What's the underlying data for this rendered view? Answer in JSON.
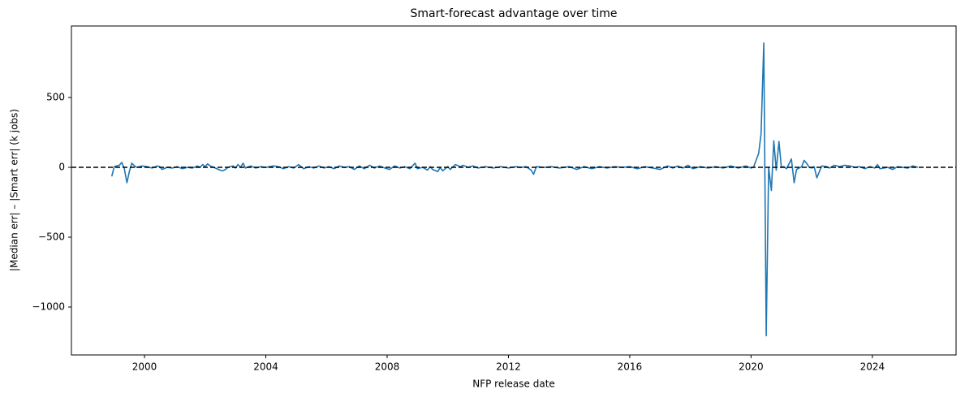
{
  "chart_data": {
    "type": "line",
    "title": "Smart-forecast advantage over time",
    "x_label": "NFP release date",
    "y_label": "|Median err| – |Smart err|  (k jobs)",
    "x": [
      1998.92,
      1999.0,
      1999.08,
      1999.17,
      1999.25,
      1999.33,
      1999.42,
      1999.5,
      1999.58,
      1999.67,
      1999.75,
      1999.92,
      2000.08,
      2000.25,
      2000.42,
      2000.5,
      2000.58,
      2000.75,
      2000.92,
      2001.08,
      2001.25,
      2001.42,
      2001.58,
      2001.75,
      2001.83,
      2001.92,
      2002.0,
      2002.08,
      2002.17,
      2002.33,
      2002.5,
      2002.58,
      2002.67,
      2002.75,
      2002.92,
      2003.0,
      2003.08,
      2003.17,
      2003.25,
      2003.33,
      2003.5,
      2003.67,
      2003.83,
      2004.0,
      2004.25,
      2004.42,
      2004.58,
      2004.75,
      2004.92,
      2005.08,
      2005.25,
      2005.42,
      2005.58,
      2005.75,
      2005.92,
      2006.08,
      2006.25,
      2006.42,
      2006.58,
      2006.75,
      2006.92,
      2007.08,
      2007.25,
      2007.42,
      2007.58,
      2007.75,
      2007.92,
      2008.08,
      2008.25,
      2008.42,
      2008.58,
      2008.75,
      2008.92,
      2009.0,
      2009.17,
      2009.33,
      2009.42,
      2009.5,
      2009.67,
      2009.75,
      2009.83,
      2010.0,
      2010.08,
      2010.25,
      2010.42,
      2010.5,
      2010.67,
      2010.83,
      2011.0,
      2011.25,
      2011.5,
      2011.75,
      2012.0,
      2012.25,
      2012.42,
      2012.58,
      2012.75,
      2012.83,
      2012.92,
      2013.17,
      2013.42,
      2013.67,
      2014.0,
      2014.25,
      2014.5,
      2014.75,
      2015.0,
      2015.25,
      2015.5,
      2015.75,
      2016.0,
      2016.25,
      2016.5,
      2016.75,
      2017.0,
      2017.25,
      2017.42,
      2017.58,
      2017.75,
      2017.92,
      2018.08,
      2018.33,
      2018.58,
      2018.83,
      2019.08,
      2019.33,
      2019.58,
      2019.83,
      2020.0,
      2020.08,
      2020.25,
      2020.33,
      2020.42,
      2020.5,
      2020.58,
      2020.67,
      2020.75,
      2020.83,
      2020.92,
      2021.0,
      2021.08,
      2021.17,
      2021.33,
      2021.42,
      2021.5,
      2021.67,
      2021.75,
      2021.83,
      2021.92,
      2022.0,
      2022.08,
      2022.17,
      2022.33,
      2022.5,
      2022.58,
      2022.75,
      2022.92,
      2023.08,
      2023.25,
      2023.42,
      2023.58,
      2023.75,
      2023.92,
      2024.08,
      2024.17,
      2024.25,
      2024.5,
      2024.67,
      2024.83,
      2025.0,
      2025.17,
      2025.33,
      2025.5
    ],
    "series": [
      {
        "color": "#1f77b4",
        "values": [
          -65,
          5,
          10,
          15,
          35,
          -5,
          -110,
          -30,
          30,
          10,
          0,
          10,
          5,
          -5,
          10,
          5,
          -15,
          0,
          -5,
          5,
          -10,
          0,
          -5,
          10,
          0,
          20,
          5,
          25,
          10,
          -5,
          -20,
          -25,
          -15,
          0,
          10,
          -5,
          20,
          0,
          30,
          -5,
          10,
          -5,
          5,
          0,
          10,
          5,
          -10,
          5,
          -5,
          20,
          -10,
          5,
          -5,
          10,
          -5,
          5,
          -10,
          10,
          0,
          5,
          -15,
          10,
          -10,
          15,
          -5,
          10,
          -5,
          -15,
          10,
          -5,
          5,
          -10,
          30,
          -10,
          0,
          -20,
          5,
          -15,
          -30,
          0,
          -25,
          5,
          -15,
          20,
          5,
          15,
          0,
          10,
          -5,
          5,
          -5,
          5,
          -5,
          5,
          0,
          5,
          -20,
          -50,
          5,
          0,
          5,
          -5,
          5,
          -15,
          5,
          -10,
          5,
          -5,
          5,
          0,
          5,
          -10,
          5,
          -5,
          -15,
          10,
          -5,
          10,
          -5,
          15,
          -10,
          5,
          -5,
          5,
          -5,
          10,
          -5,
          10,
          -5,
          0,
          100,
          240,
          890,
          -1205,
          0,
          -165,
          190,
          -20,
          185,
          0,
          5,
          -10,
          60,
          -110,
          -15,
          5,
          50,
          30,
          0,
          -5,
          5,
          -75,
          10,
          5,
          -5,
          15,
          5,
          15,
          10,
          0,
          5,
          -10,
          5,
          -5,
          20,
          -10,
          0,
          -15,
          5,
          0,
          -5,
          10,
          0
        ]
      }
    ],
    "hline": 0,
    "hline_color": "#000000",
    "xlim": [
      1997.59,
      2026.76
    ],
    "xticks": [
      2000,
      2004,
      2008,
      2012,
      2016,
      2020,
      2024
    ],
    "ylim": [
      -1343,
      1012
    ],
    "yticks": [
      {
        "value": -1000,
        "label": "−1000"
      },
      {
        "value": -500,
        "label": "−500"
      },
      0,
      500
    ]
  }
}
